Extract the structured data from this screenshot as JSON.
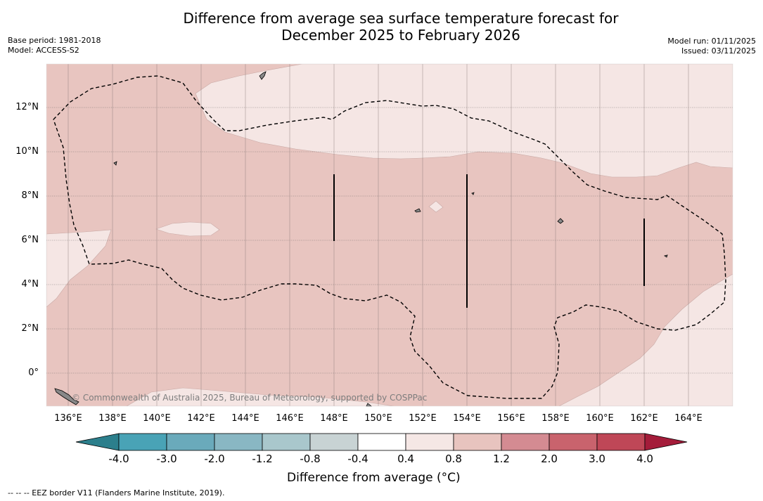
{
  "title_line1": "Difference from average sea surface temperature forecast for",
  "title_line2": "December 2025 to February 2026",
  "base_period": "Base period: 1981-2018",
  "model": "Model: ACCESS-S2",
  "model_run": "Model run: 01/11/2025",
  "issued": "Issued: 03/11/2025",
  "lat_labels": [
    "12°N",
    "10°N",
    "8°N",
    "6°N",
    "4°N",
    "2°N",
    "0°"
  ],
  "lon_labels": [
    "136°E",
    "138°E",
    "140°E",
    "142°E",
    "144°E",
    "146°E",
    "148°E",
    "150°E",
    "152°E",
    "154°E",
    "156°E",
    "158°E",
    "160°E",
    "162°E",
    "164°E"
  ],
  "credit": "© Commonwealth of Australia 2025, Bureau of Meteorology, supported by COSPPac",
  "colorbar": {
    "labels": [
      "-4.0",
      "-3.0",
      "-2.0",
      "-1.2",
      "-0.8",
      "-0.4",
      "0.4",
      "0.8",
      "1.2",
      "2.0",
      "3.0",
      "4.0"
    ],
    "colors": [
      "#2c7f8c",
      "#49a3b6",
      "#6aaabb",
      "#89b7c3",
      "#a9c7cc",
      "#c8d3d4",
      "#ffffff",
      "#f5e7e5",
      "#e8c4bf",
      "#d48b92",
      "#c9636d",
      "#bf4757",
      "#a41c3a"
    ],
    "title": "Difference from average (°C)"
  },
  "footnote": "--  --  -- EEZ border V11 (Flanders Marine Institute, 2019).",
  "legend_classes": {
    "light": "0.4 to 0.8",
    "medium": "0.8 to 1.2"
  }
}
